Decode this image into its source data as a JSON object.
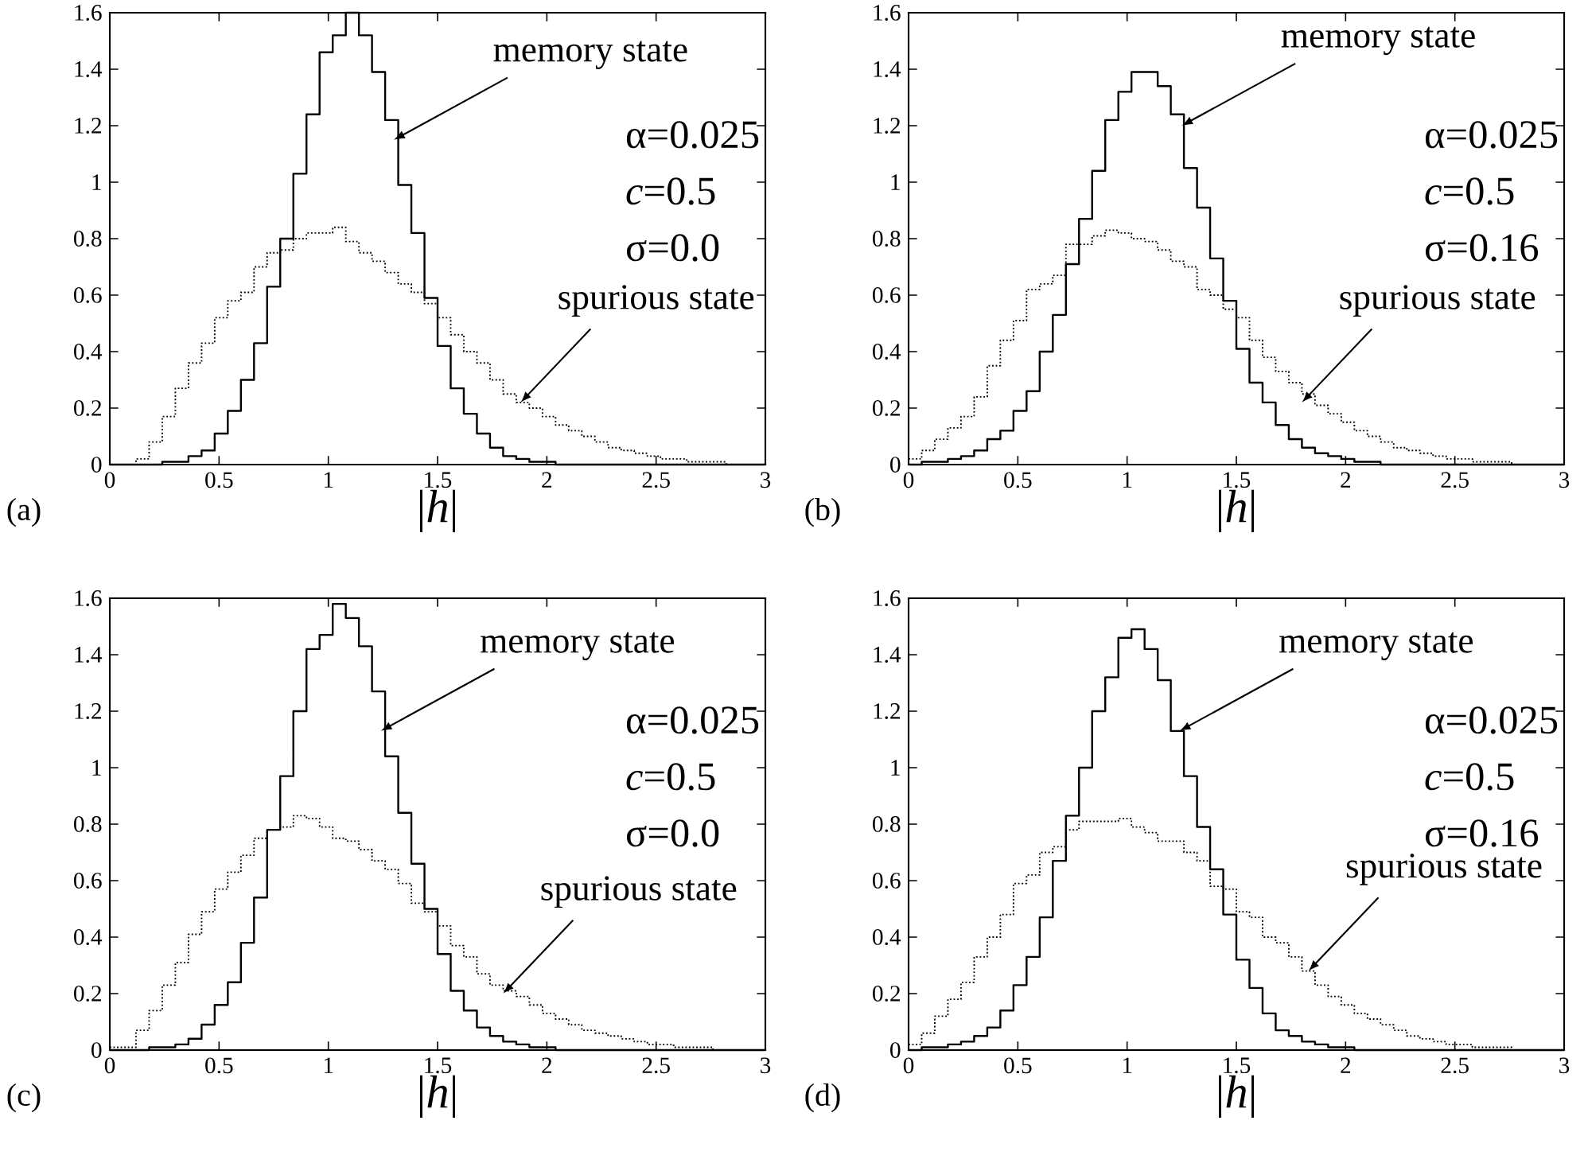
{
  "chart_data": [
    {
      "type": "histogram",
      "bins": [
        0,
        0.06,
        0.12,
        0.18,
        0.24,
        0.3,
        0.36,
        0.42,
        0.48,
        0.54,
        0.6,
        0.66,
        0.72,
        0.78,
        0.84,
        0.9,
        0.96,
        1.02,
        1.08,
        1.14,
        1.2,
        1.26,
        1.32,
        1.38,
        1.44,
        1.5,
        1.56,
        1.62,
        1.68,
        1.74,
        1.8,
        1.86,
        1.92,
        1.98,
        2.04,
        2.1,
        2.16,
        2.22,
        2.28,
        2.34,
        2.4,
        2.46,
        2.52,
        2.58,
        2.64,
        2.7,
        2.76,
        2.82,
        2.88,
        2.94,
        3
      ],
      "series": [
        {
          "color": "#000000",
          "line_style": "solid",
          "values": [
            0,
            0,
            0,
            0,
            0.01,
            0.01,
            0.03,
            0.05,
            0.11,
            0.19,
            0.3,
            0.43,
            0.63,
            0.8,
            1.03,
            1.24,
            1.46,
            1.52,
            1.6,
            1.52,
            1.39,
            1.22,
            0.99,
            0.82,
            0.59,
            0.42,
            0.27,
            0.18,
            0.11,
            0.06,
            0.03,
            0.02,
            0.01,
            0.01,
            0,
            0,
            0,
            0,
            0,
            0,
            0,
            0,
            0,
            0,
            0,
            0,
            0,
            0,
            0,
            0
          ]
        },
        {
          "color": "#000000",
          "line_style": "dotted",
          "values": [
            0,
            0,
            0.02,
            0.08,
            0.17,
            0.27,
            0.36,
            0.43,
            0.52,
            0.58,
            0.61,
            0.7,
            0.75,
            0.76,
            0.8,
            0.82,
            0.82,
            0.84,
            0.79,
            0.75,
            0.72,
            0.68,
            0.64,
            0.61,
            0.57,
            0.52,
            0.46,
            0.4,
            0.36,
            0.3,
            0.25,
            0.22,
            0.2,
            0.17,
            0.14,
            0.12,
            0.1,
            0.08,
            0.06,
            0.05,
            0.04,
            0.03,
            0.02,
            0.02,
            0.01,
            0.01,
            0.01,
            0,
            0,
            0
          ]
        }
      ],
      "xlim": [
        0,
        3
      ],
      "ylim": [
        0,
        1.6
      ],
      "xticks": [
        0,
        0.5,
        1,
        1.5,
        2,
        2.5,
        3
      ],
      "yticks": [
        0,
        0.2,
        0.4,
        0.6,
        0.8,
        1,
        1.2,
        1.4,
        1.6
      ],
      "xlabel": "|*h*|",
      "annotations": [
        {
          "text": "memory state",
          "x": 1.3,
          "y": 1.15
        },
        {
          "text": "spurious state",
          "x": 1.88,
          "y": 0.22
        },
        "α=0.025",
        "*c*=0.5",
        "σ=0.0",
        "(a)"
      ]
    },
    {
      "type": "histogram",
      "bins": [
        0,
        0.06,
        0.12,
        0.18,
        0.24,
        0.3,
        0.36,
        0.42,
        0.48,
        0.54,
        0.6,
        0.66,
        0.72,
        0.78,
        0.84,
        0.9,
        0.96,
        1.02,
        1.08,
        1.14,
        1.2,
        1.26,
        1.32,
        1.38,
        1.44,
        1.5,
        1.56,
        1.62,
        1.68,
        1.74,
        1.8,
        1.86,
        1.92,
        1.98,
        2.04,
        2.1,
        2.16,
        2.22,
        2.28,
        2.34,
        2.4,
        2.46,
        2.52,
        2.58,
        2.64,
        2.7,
        2.76,
        2.82,
        2.88,
        2.94,
        3
      ],
      "series": [
        {
          "color": "#000000",
          "line_style": "solid",
          "values": [
            0,
            0.01,
            0.01,
            0.02,
            0.03,
            0.05,
            0.09,
            0.12,
            0.19,
            0.26,
            0.4,
            0.53,
            0.71,
            0.87,
            1.04,
            1.22,
            1.32,
            1.39,
            1.39,
            1.34,
            1.24,
            1.05,
            0.91,
            0.73,
            0.58,
            0.41,
            0.29,
            0.22,
            0.14,
            0.09,
            0.06,
            0.04,
            0.03,
            0.02,
            0.01,
            0.01,
            0,
            0,
            0,
            0,
            0,
            0,
            0,
            0,
            0,
            0,
            0,
            0,
            0,
            0
          ]
        },
        {
          "color": "#000000",
          "line_style": "dotted",
          "values": [
            0.02,
            0.05,
            0.09,
            0.13,
            0.17,
            0.24,
            0.35,
            0.44,
            0.51,
            0.62,
            0.64,
            0.67,
            0.78,
            0.78,
            0.81,
            0.83,
            0.82,
            0.8,
            0.79,
            0.76,
            0.72,
            0.7,
            0.62,
            0.6,
            0.55,
            0.52,
            0.44,
            0.38,
            0.33,
            0.29,
            0.25,
            0.21,
            0.18,
            0.15,
            0.12,
            0.1,
            0.08,
            0.06,
            0.05,
            0.04,
            0.03,
            0.02,
            0.02,
            0.01,
            0.01,
            0.01,
            0,
            0,
            0,
            0
          ]
        }
      ],
      "xlim": [
        0,
        3
      ],
      "ylim": [
        0,
        1.6
      ],
      "xticks": [
        0,
        0.5,
        1,
        1.5,
        2,
        2.5,
        3
      ],
      "yticks": [
        0,
        0.2,
        0.4,
        0.6,
        0.8,
        1,
        1.2,
        1.4,
        1.6
      ],
      "xlabel": "|*h*|",
      "annotations": [
        {
          "text": "memory state",
          "x": 1.25,
          "y": 1.2
        },
        {
          "text": "spurious state",
          "x": 1.8,
          "y": 0.22
        },
        "α=0.025",
        "*c*=0.5",
        "σ=0.16",
        "(b)"
      ]
    },
    {
      "type": "histogram",
      "bins": [
        0,
        0.06,
        0.12,
        0.18,
        0.24,
        0.3,
        0.36,
        0.42,
        0.48,
        0.54,
        0.6,
        0.66,
        0.72,
        0.78,
        0.84,
        0.9,
        0.96,
        1.02,
        1.08,
        1.14,
        1.2,
        1.26,
        1.32,
        1.38,
        1.44,
        1.5,
        1.56,
        1.62,
        1.68,
        1.74,
        1.8,
        1.86,
        1.92,
        1.98,
        2.04,
        2.1,
        2.16,
        2.22,
        2.28,
        2.34,
        2.4,
        2.46,
        2.52,
        2.58,
        2.64,
        2.7,
        2.76,
        2.82,
        2.88,
        2.94,
        3
      ],
      "series": [
        {
          "color": "#000000",
          "line_style": "solid",
          "values": [
            0,
            0,
            0,
            0.01,
            0.01,
            0.02,
            0.04,
            0.09,
            0.16,
            0.24,
            0.38,
            0.54,
            0.78,
            0.97,
            1.2,
            1.42,
            1.47,
            1.58,
            1.53,
            1.43,
            1.27,
            1.04,
            0.84,
            0.66,
            0.5,
            0.34,
            0.21,
            0.14,
            0.08,
            0.05,
            0.03,
            0.02,
            0.01,
            0.01,
            0,
            0,
            0,
            0,
            0,
            0,
            0,
            0,
            0,
            0,
            0,
            0,
            0,
            0,
            0,
            0
          ]
        },
        {
          "color": "#000000",
          "line_style": "dotted",
          "values": [
            0.01,
            0.01,
            0.07,
            0.14,
            0.23,
            0.31,
            0.41,
            0.49,
            0.57,
            0.63,
            0.69,
            0.75,
            0.78,
            0.79,
            0.83,
            0.82,
            0.79,
            0.75,
            0.74,
            0.71,
            0.67,
            0.64,
            0.59,
            0.52,
            0.49,
            0.44,
            0.37,
            0.33,
            0.27,
            0.23,
            0.21,
            0.19,
            0.16,
            0.13,
            0.11,
            0.09,
            0.07,
            0.06,
            0.05,
            0.04,
            0.03,
            0.02,
            0.02,
            0.01,
            0.01,
            0.01,
            0,
            0,
            0,
            0
          ]
        }
      ],
      "xlim": [
        0,
        3
      ],
      "ylim": [
        0,
        1.6
      ],
      "xticks": [
        0,
        0.5,
        1,
        1.5,
        2,
        2.5,
        3
      ],
      "yticks": [
        0,
        0.2,
        0.4,
        0.6,
        0.8,
        1,
        1.2,
        1.4,
        1.6
      ],
      "xlabel": "|*h*|",
      "annotations": [
        {
          "text": "memory state",
          "x": 1.24,
          "y": 1.13
        },
        {
          "text": "spurious state",
          "x": 1.8,
          "y": 0.2
        },
        "α=0.025",
        "*c*=0.5",
        "σ=0.0",
        "(c)"
      ]
    },
    {
      "type": "histogram",
      "bins": [
        0,
        0.06,
        0.12,
        0.18,
        0.24,
        0.3,
        0.36,
        0.42,
        0.48,
        0.54,
        0.6,
        0.66,
        0.72,
        0.78,
        0.84,
        0.9,
        0.96,
        1.02,
        1.08,
        1.14,
        1.2,
        1.26,
        1.32,
        1.38,
        1.44,
        1.5,
        1.56,
        1.62,
        1.68,
        1.74,
        1.8,
        1.86,
        1.92,
        1.98,
        2.04,
        2.1,
        2.16,
        2.22,
        2.28,
        2.34,
        2.4,
        2.46,
        2.52,
        2.58,
        2.64,
        2.7,
        2.76,
        2.82,
        2.88,
        2.94,
        3
      ],
      "series": [
        {
          "color": "#000000",
          "line_style": "solid",
          "values": [
            0,
            0.01,
            0.01,
            0.02,
            0.03,
            0.05,
            0.08,
            0.14,
            0.23,
            0.33,
            0.47,
            0.67,
            0.83,
            1.0,
            1.2,
            1.32,
            1.46,
            1.49,
            1.42,
            1.31,
            1.13,
            0.97,
            0.79,
            0.64,
            0.48,
            0.32,
            0.22,
            0.13,
            0.07,
            0.05,
            0.03,
            0.02,
            0.01,
            0.01,
            0,
            0,
            0,
            0,
            0,
            0,
            0,
            0,
            0,
            0,
            0,
            0,
            0,
            0,
            0,
            0
          ]
        },
        {
          "color": "#000000",
          "line_style": "dotted",
          "values": [
            0.02,
            0.06,
            0.12,
            0.18,
            0.24,
            0.33,
            0.4,
            0.48,
            0.59,
            0.62,
            0.7,
            0.72,
            0.78,
            0.81,
            0.81,
            0.81,
            0.82,
            0.79,
            0.77,
            0.74,
            0.74,
            0.7,
            0.67,
            0.58,
            0.57,
            0.49,
            0.47,
            0.4,
            0.38,
            0.33,
            0.28,
            0.23,
            0.19,
            0.16,
            0.13,
            0.11,
            0.09,
            0.07,
            0.05,
            0.04,
            0.03,
            0.02,
            0.02,
            0.01,
            0.01,
            0.01,
            0,
            0,
            0,
            0
          ]
        }
      ],
      "xlim": [
        0,
        3
      ],
      "ylim": [
        0,
        1.6
      ],
      "xticks": [
        0,
        0.5,
        1,
        1.5,
        2,
        2.5,
        3
      ],
      "yticks": [
        0,
        0.2,
        0.4,
        0.6,
        0.8,
        1,
        1.2,
        1.4,
        1.6
      ],
      "xlabel": "|*h*|",
      "annotations": [
        {
          "text": "memory state",
          "x": 1.24,
          "y": 1.13
        },
        {
          "text": "spurious state",
          "x": 1.83,
          "y": 0.28
        },
        "α=0.025",
        "*c*=0.5",
        "σ=0.16",
        "(d)"
      ]
    }
  ]
}
